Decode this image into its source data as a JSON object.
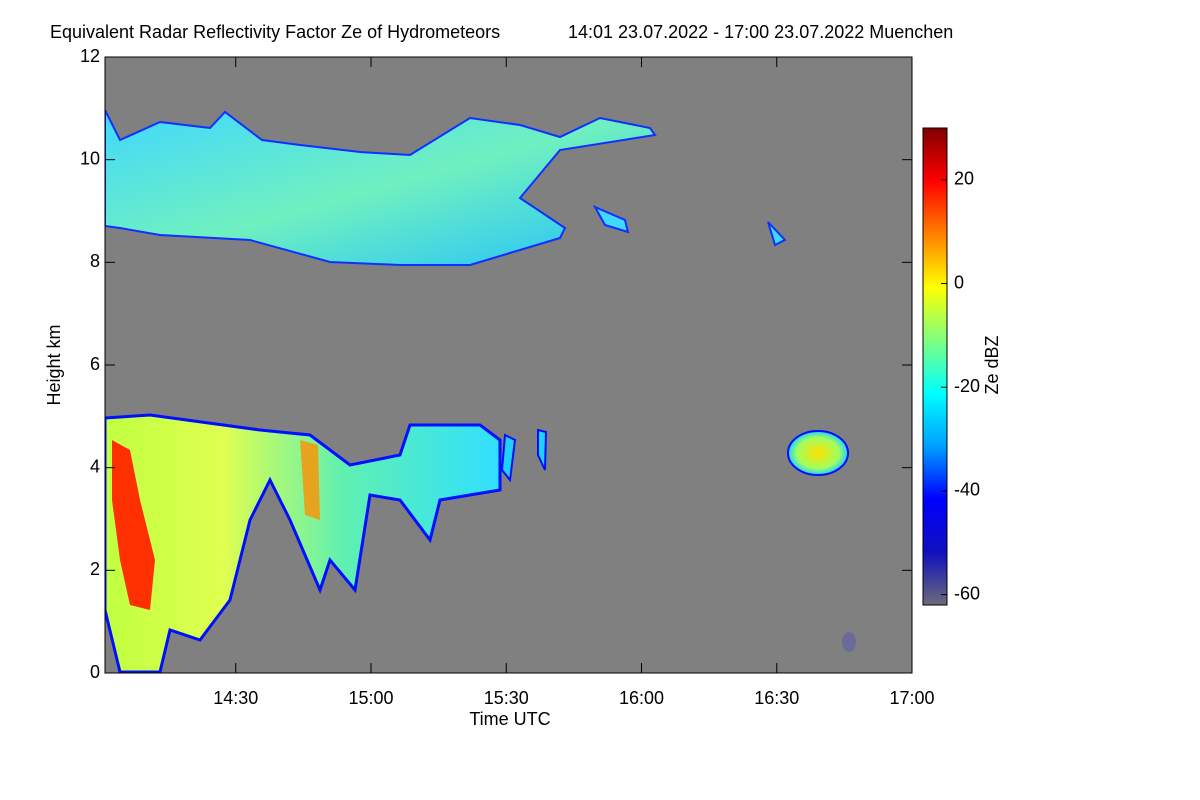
{
  "chart_data": {
    "type": "heatmap",
    "title": "Equivalent Radar Reflectivity Factor Ze of Hydrometeors",
    "subtitle": "14:01 23.07.2022 - 17:00 23.07.2022 Muenchen",
    "x_label": "Time UTC",
    "y_label": "Height km",
    "colorbar_label": "Ze dBZ",
    "xlim": [
      841,
      1020
    ],
    "xticks": [
      {
        "value": 870,
        "label": "14:30"
      },
      {
        "value": 900,
        "label": "15:00"
      },
      {
        "value": 930,
        "label": "15:30"
      },
      {
        "value": 960,
        "label": "16:00"
      },
      {
        "value": 990,
        "label": "16:30"
      },
      {
        "value": 1020,
        "label": "17:00"
      }
    ],
    "ylim": [
      0,
      12
    ],
    "yticks": [
      0,
      2,
      4,
      6,
      8,
      10,
      12
    ],
    "clim": [
      -62,
      30
    ],
    "cticks": [
      -60,
      -40,
      -20,
      0,
      20
    ],
    "background": "#808080",
    "colormap": [
      "#6b6b7a",
      "#1010c0",
      "#0000ff",
      "#00a0ff",
      "#00ffff",
      "#80ff80",
      "#ffff00",
      "#ff8000",
      "#ff0000",
      "#800000"
    ]
  }
}
